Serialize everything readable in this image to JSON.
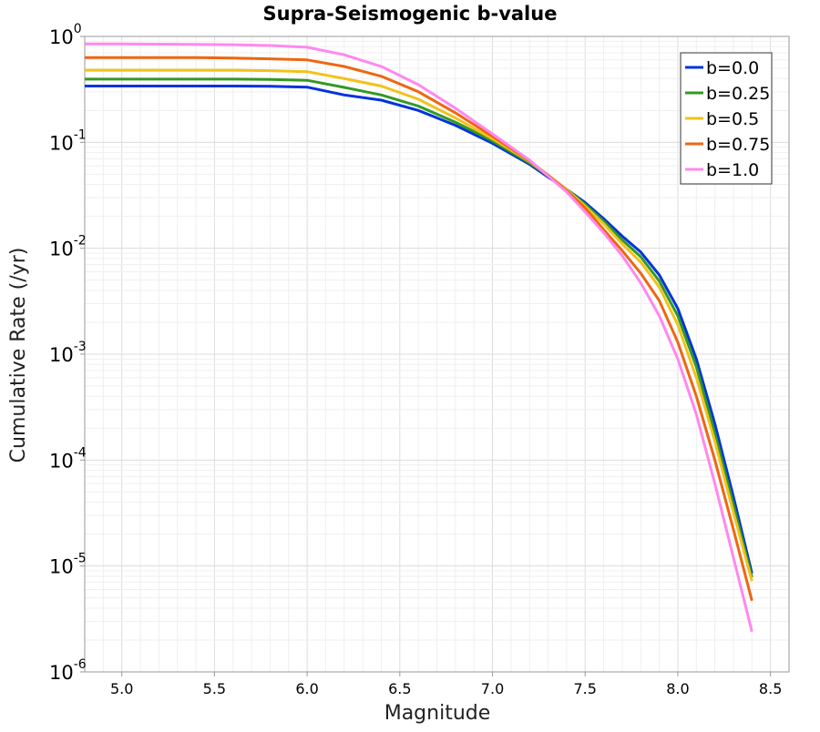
{
  "chart_data": {
    "type": "line",
    "title": "Supra-Seismogenic b-value",
    "xlabel": "Magnitude",
    "ylabel": "Cumulative Rate (/yr)",
    "xlim": [
      4.8,
      8.6
    ],
    "ylim": [
      1e-06,
      1
    ],
    "yscale": "log",
    "grid": true,
    "legend_position": "top-right",
    "xticks": [
      "5.0",
      "5.5",
      "6.0",
      "6.5",
      "7.0",
      "7.5",
      "8.0",
      "8.5"
    ],
    "yticks": [
      {
        "base": "10",
        "exp": "0"
      },
      {
        "base": "10",
        "exp": "-1"
      },
      {
        "base": "10",
        "exp": "-2"
      },
      {
        "base": "10",
        "exp": "-3"
      },
      {
        "base": "10",
        "exp": "-4"
      },
      {
        "base": "10",
        "exp": "-5"
      },
      {
        "base": "10",
        "exp": "-6"
      }
    ],
    "x": [
      4.8,
      5.0,
      5.2,
      5.4,
      5.6,
      5.8,
      6.0,
      6.2,
      6.4,
      6.6,
      6.8,
      7.0,
      7.2,
      7.3,
      7.4,
      7.5,
      7.6,
      7.7,
      7.8,
      7.9,
      8.0,
      8.1,
      8.2,
      8.3,
      8.4
    ],
    "series": [
      {
        "name": "b=0.0",
        "color": "#0033dd",
        "values": [
          0.34,
          0.34,
          0.34,
          0.34,
          0.34,
          0.338,
          0.332,
          0.28,
          0.25,
          0.2,
          0.145,
          0.098,
          0.062,
          0.047,
          0.036,
          0.027,
          0.019,
          0.013,
          0.0092,
          0.0056,
          0.0027,
          0.0009,
          0.00022,
          4.5e-05,
          8.5e-06
        ]
      },
      {
        "name": "b=0.25",
        "color": "#339922",
        "values": [
          0.395,
          0.395,
          0.395,
          0.395,
          0.395,
          0.392,
          0.385,
          0.33,
          0.28,
          0.22,
          0.155,
          0.103,
          0.064,
          0.048,
          0.036,
          0.026,
          0.018,
          0.012,
          0.0083,
          0.0049,
          0.0023,
          0.00076,
          0.00018,
          3.8e-05,
          7.8e-06
        ]
      },
      {
        "name": "b=0.5",
        "color": "#f2c21a",
        "values": [
          0.48,
          0.48,
          0.48,
          0.48,
          0.48,
          0.475,
          0.465,
          0.4,
          0.34,
          0.255,
          0.17,
          0.108,
          0.066,
          0.049,
          0.036,
          0.025,
          0.017,
          0.011,
          0.0074,
          0.0043,
          0.0019,
          0.0006,
          0.00015,
          3.2e-05,
          7.2e-06
        ]
      },
      {
        "name": "b=0.75",
        "color": "#ee6611",
        "values": [
          0.63,
          0.63,
          0.63,
          0.63,
          0.625,
          0.615,
          0.6,
          0.52,
          0.42,
          0.3,
          0.19,
          0.114,
          0.067,
          0.049,
          0.035,
          0.024,
          0.015,
          0.0095,
          0.0058,
          0.0032,
          0.0013,
          0.0004,
          0.0001,
          2.2e-05,
          4.7e-06
        ]
      },
      {
        "name": "b=1.0",
        "color": "#ff88ee",
        "values": [
          0.85,
          0.85,
          0.845,
          0.84,
          0.835,
          0.82,
          0.79,
          0.67,
          0.52,
          0.35,
          0.21,
          0.12,
          0.068,
          0.048,
          0.034,
          0.022,
          0.014,
          0.0085,
          0.0047,
          0.0023,
          0.0009,
          0.00027,
          6e-05,
          1.2e-05,
          2.4e-06
        ]
      }
    ]
  }
}
